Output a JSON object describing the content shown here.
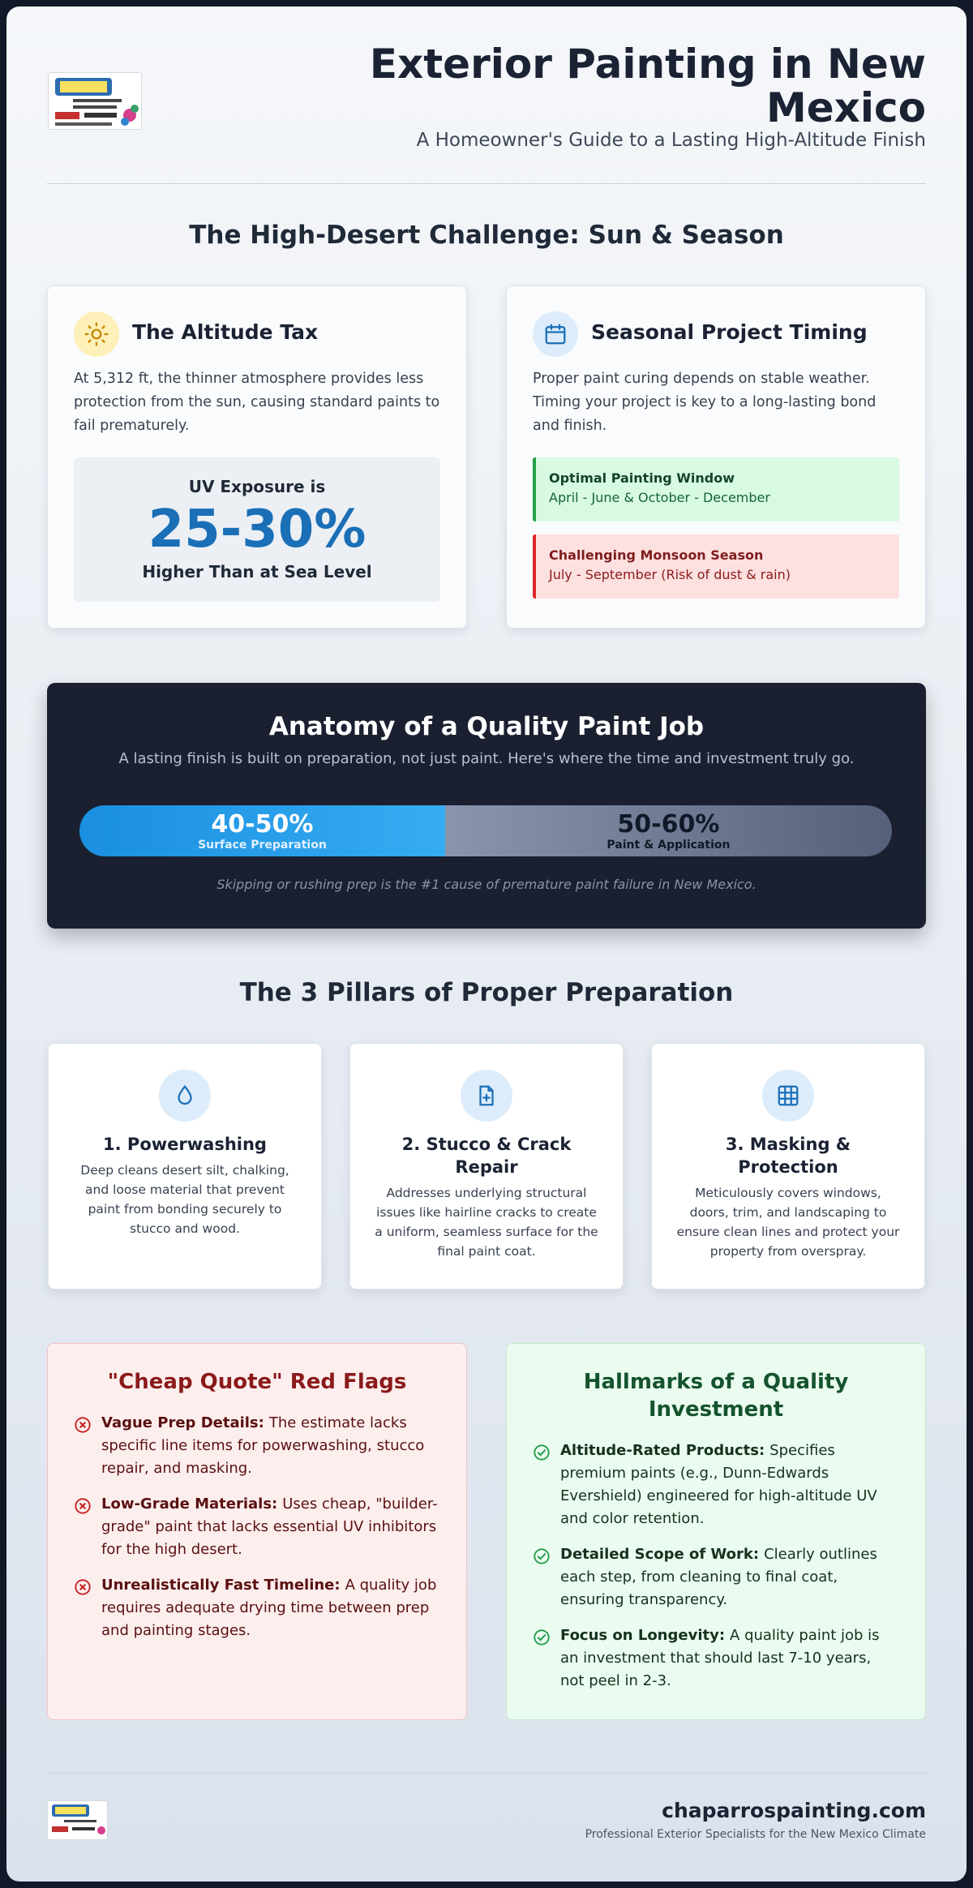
{
  "header": {
    "title": "Exterior Painting in New Mexico",
    "subtitle": "A Homeowner's Guide to a Lasting High-Altitude Finish"
  },
  "challenge": {
    "heading": "The High-Desert Challenge: Sun & Season",
    "altitude": {
      "title": "The Altitude Tax",
      "text": "At 5,312 ft, the thinner atmosphere provides less protection from the sun, causing standard paints to fail prematurely.",
      "stat_prefix": "UV Exposure is",
      "stat_value": "25-30%",
      "stat_suffix": "Higher Than at Sea Level"
    },
    "timing": {
      "title": "Seasonal Project Timing",
      "text": "Proper paint curing depends on stable weather. Timing your project is key to a long-lasting bond and finish.",
      "windows": [
        {
          "title": "Optimal Painting Window",
          "text": "April - June & October - December"
        },
        {
          "title": "Challenging Monsoon Season",
          "text": "July - September (Risk of dust & rain)"
        }
      ]
    }
  },
  "anatomy": {
    "title": "Anatomy of a Quality Paint Job",
    "subtitle": "A lasting finish is built on preparation, not just paint. Here's where the time and investment truly go.",
    "segments": [
      {
        "value": "40-50%",
        "label": "Surface Preparation"
      },
      {
        "value": "50-60%",
        "label": "Paint & Application"
      }
    ],
    "note": "Skipping or rushing prep is the #1 cause of premature paint failure in New Mexico."
  },
  "pillars": {
    "heading": "The 3 Pillars of Proper Preparation",
    "items": [
      {
        "title": "1. Powerwashing",
        "text": "Deep cleans desert silt, chalking, and loose material that prevent paint from bonding securely to stucco and wood."
      },
      {
        "title": "2. Stucco & Crack Repair",
        "text": "Addresses underlying structural issues like hairline cracks to create a uniform, seamless surface for the final paint coat."
      },
      {
        "title": "3. Masking & Protection",
        "text": "Meticulously covers windows, doors, trim, and landscaping to ensure clean lines and protect your property from overspray."
      }
    ]
  },
  "comparison": {
    "red_flags": {
      "title": "\"Cheap Quote\" Red Flags",
      "items": [
        {
          "label": "Vague Prep Details:",
          "text": "The estimate lacks specific line items for powerwashing, stucco repair, and masking."
        },
        {
          "label": "Low-Grade Materials:",
          "text": "Uses cheap, \"builder-grade\" paint that lacks essential UV inhibitors for the high desert."
        },
        {
          "label": "Unrealistically Fast Timeline:",
          "text": "A quality job requires adequate drying time between prep and painting stages."
        }
      ]
    },
    "hallmarks": {
      "title": "Hallmarks of a Quality Investment",
      "items": [
        {
          "label": "Altitude-Rated Products:",
          "text": "Specifies premium paints (e.g., Dunn-Edwards Evershield) engineered for high-altitude UV and color retention."
        },
        {
          "label": "Detailed Scope of Work:",
          "text": "Clearly outlines each step, from cleaning to final coat, ensuring transparency."
        },
        {
          "label": "Focus on Longevity:",
          "text": "A quality paint job is an investment that should last 7-10 years, not peel in 2-3."
        }
      ]
    }
  },
  "footer": {
    "domain": "chaparrospainting.com",
    "tagline": "Professional Exterior Specialists for the New Mexico Climate"
  }
}
